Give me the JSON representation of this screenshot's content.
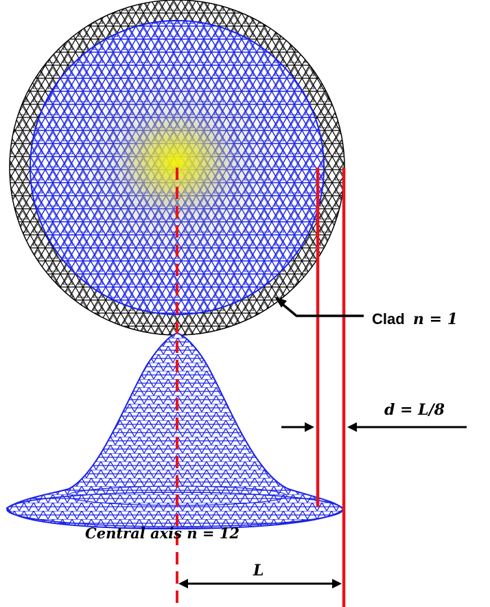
{
  "annotations": {
    "clad_word": "Clad",
    "clad_index": "n = 1",
    "gap_formula": "d = L/8",
    "axis_label": "Central axis n = 12",
    "length_symbol": "L"
  },
  "colors": {
    "core_mesh": "#1a22e6",
    "clad_mesh": "#000000",
    "core_center_glow": "#f2f200",
    "red_lines": "#e8141c",
    "arrows": "#000000"
  },
  "icons": {
    "clad_pointer": "bent-arrow-icon",
    "gap_arrows": "arrow-right-icon, arrow-left-icon",
    "length_dimension": "double-arrow-icon"
  }
}
